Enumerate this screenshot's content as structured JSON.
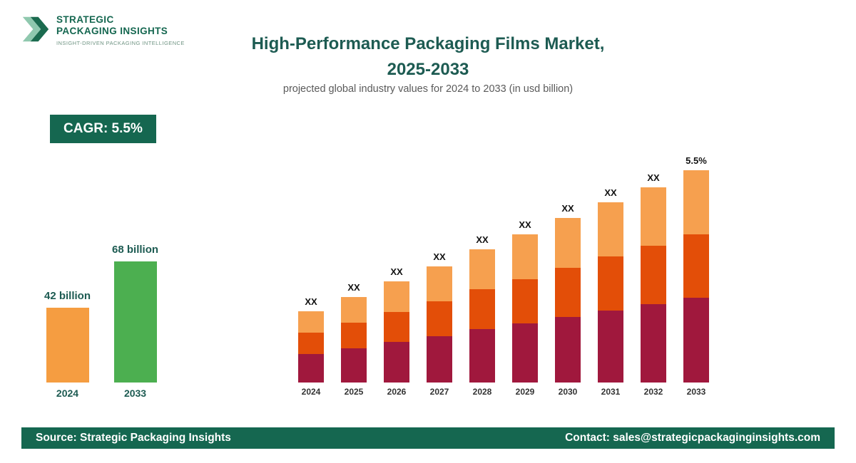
{
  "logo": {
    "line1": "STRATEGIC",
    "line2": "PACKAGING INSIGHTS",
    "tagline": "INSIGHT-DRIVEN PACKAGING INTELLIGENCE"
  },
  "header": {
    "title_line1": "High-Performance Packaging Films Market,",
    "title_line2": "2025-2033",
    "subtitle": "projected global industry values for 2024 to 2033 (in usd billion)"
  },
  "cagr_badge": "CAGR: 5.5%",
  "footer": {
    "source": "Source: Strategic Packaging Insights",
    "contact": "Contact: sales@strategicpackaginginsights.com"
  },
  "colors": {
    "brand_green_dark": "#156750",
    "title_teal": "#1d5b52",
    "bar_orange": "#f59d41",
    "bar_green": "#4caf50",
    "segment_maroon": "#a0183d",
    "segment_orange_red": "#e34e08",
    "segment_light_orange": "#f6a04f"
  },
  "chart_data": [
    {
      "type": "bar",
      "title": "Market size 2024 vs 2033",
      "categories": [
        "2024",
        "2033"
      ],
      "values": [
        42,
        68
      ],
      "value_labels": [
        "42 billion",
        "68 billion"
      ],
      "colors": [
        "#f59d41",
        "#4caf50"
      ],
      "unit": "usd billion",
      "ylim": [
        0,
        80
      ]
    },
    {
      "type": "stacked-bar",
      "title": "Projected global industry values 2024-2033",
      "categories": [
        "2024",
        "2025",
        "2026",
        "2027",
        "2028",
        "2029",
        "2030",
        "2031",
        "2032",
        "2033"
      ],
      "series": [
        {
          "name": "segment-bottom",
          "color": "#a0183d",
          "values": [
            40,
            48,
            57,
            65,
            75,
            83,
            92,
            101,
            110,
            119
          ]
        },
        {
          "name": "segment-middle",
          "color": "#e34e08",
          "values": [
            30,
            36,
            42,
            49,
            56,
            62,
            69,
            76,
            82,
            89
          ]
        },
        {
          "name": "segment-top",
          "color": "#f6a04f",
          "values": [
            30,
            36,
            43,
            49,
            56,
            63,
            70,
            76,
            82,
            90
          ]
        }
      ],
      "totals": [
        100,
        120,
        142,
        163,
        187,
        208,
        231,
        253,
        274,
        298
      ],
      "bar_labels": [
        "XX",
        "XX",
        "XX",
        "XX",
        "XX",
        "XX",
        "XX",
        "XX",
        "XX",
        "5.5%"
      ],
      "unit": "relative (values not labeled, shown as XX)",
      "ylim": [
        0,
        320
      ],
      "grid": false,
      "legend": "none"
    }
  ]
}
